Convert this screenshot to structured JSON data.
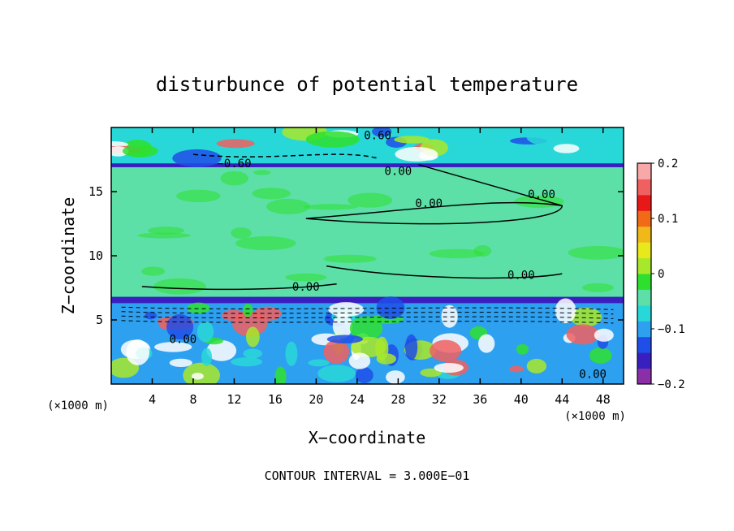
{
  "chart_data": {
    "type": "heatmap",
    "title": "disturbunce of potential temperature",
    "xlabel": "X−coordinate",
    "ylabel": "Z−coordinate",
    "x_unit": "(×1000 m)",
    "y_unit": "(×1000 m)",
    "xlim": [
      0,
      50
    ],
    "ylim": [
      0,
      20
    ],
    "x_ticks": [
      4,
      8,
      12,
      16,
      20,
      24,
      28,
      32,
      36,
      40,
      44,
      48
    ],
    "y_ticks": [
      5,
      10,
      15
    ],
    "colorbar": {
      "min": -0.2,
      "max": 0.2,
      "ticks": [
        {
          "value": 0.2,
          "label": "0.2"
        },
        {
          "value": 0.1,
          "label": "0.1"
        },
        {
          "value": 0,
          "label": "0"
        },
        {
          "value": -0.1,
          "label": "−0.1"
        },
        {
          "value": -0.2,
          "label": "−0.2"
        }
      ],
      "colors": [
        "#8b2fa8",
        "#3a1fc0",
        "#1f4fe8",
        "#2ea0f0",
        "#28d8d8",
        "#5ce0a8",
        "#2ee02e",
        "#a8e82a",
        "#e8e81a",
        "#f0b818",
        "#f06a18",
        "#e81818",
        "#f06060",
        "#f8a8a8"
      ]
    },
    "background_value": -0.05,
    "contour_interval": "3.000E−01",
    "footer": "CONTOUR INTERVAL = 3.000E−01",
    "regions": [
      {
        "z": [
          17.1,
          20
        ],
        "value": -0.08
      },
      {
        "z": [
          6.6,
          17.1
        ],
        "value": -0.04
      },
      {
        "z": [
          6.3,
          6.8
        ],
        "value": -0.17
      },
      {
        "z": [
          16.9,
          17.2
        ],
        "value": -0.17
      },
      {
        "z": [
          0,
          6.3
        ],
        "value": -0.1
      }
    ],
    "contour_labels": [
      {
        "x": 26,
        "z": 19.4,
        "text": "0.60"
      },
      {
        "x": 12,
        "z": 17.2,
        "text": "−0.60"
      },
      {
        "x": 28,
        "z": 16.6,
        "text": "0.00"
      },
      {
        "x": 31,
        "z": 14.1,
        "text": "0.00"
      },
      {
        "x": 42,
        "z": 14.8,
        "text": "0.00"
      },
      {
        "x": 40,
        "z": 8.5,
        "text": "0.00"
      },
      {
        "x": 19,
        "z": 7.6,
        "text": "0.00"
      },
      {
        "x": 7,
        "z": 3.5,
        "text": "0.00"
      },
      {
        "x": 47,
        "z": 0.8,
        "text": "0.00"
      }
    ]
  }
}
